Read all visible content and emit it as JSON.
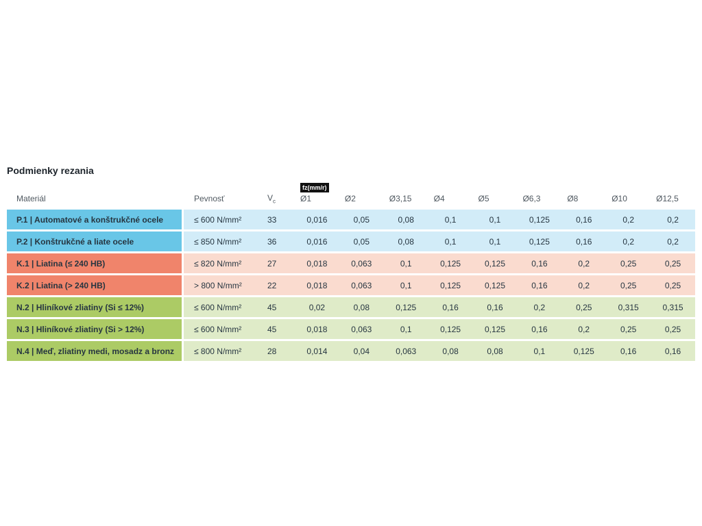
{
  "page": {
    "title": "Podmienky rezania"
  },
  "table": {
    "feed_badge": "fz(mm/r)",
    "headers": {
      "material": "Materiál",
      "strength": "Pevnosť",
      "vc_main": "V",
      "vc_sub": "c",
      "diameters": [
        "Ø1",
        "Ø2",
        "Ø3,15",
        "Ø4",
        "Ø5",
        "Ø6,3",
        "Ø8",
        "Ø10",
        "Ø12,5"
      ]
    },
    "rows": [
      {
        "group": "steel",
        "material": "P.1 | Automatové a konštrukčné ocele",
        "strength": "≤ 600 N/mm²",
        "vc": "33",
        "feeds": [
          "0,016",
          "0,05",
          "0,08",
          "0,1",
          "0,1",
          "0,125",
          "0,16",
          "0,2",
          "0,2"
        ]
      },
      {
        "group": "steel",
        "material": "P.2 | Konštrukčné a liate ocele",
        "strength": "≤ 850 N/mm²",
        "vc": "36",
        "feeds": [
          "0,016",
          "0,05",
          "0,08",
          "0,1",
          "0,1",
          "0,125",
          "0,16",
          "0,2",
          "0,2"
        ]
      },
      {
        "group": "cast-iron",
        "material": "K.1 | Liatina (≤ 240 HB)",
        "strength": "≤ 820 N/mm²",
        "vc": "27",
        "feeds": [
          "0,018",
          "0,063",
          "0,1",
          "0,125",
          "0,125",
          "0,16",
          "0,2",
          "0,25",
          "0,25"
        ]
      },
      {
        "group": "cast-iron",
        "material": "K.2 | Liatina (> 240 HB)",
        "strength": "> 800 N/mm²",
        "vc": "22",
        "feeds": [
          "0,018",
          "0,063",
          "0,1",
          "0,125",
          "0,125",
          "0,16",
          "0,2",
          "0,25",
          "0,25"
        ]
      },
      {
        "group": "non-ferrous",
        "material": "N.2 | Hliníkové zliatiny (Si ≤ 12%)",
        "strength": "≤ 600 N/mm²",
        "vc": "45",
        "feeds": [
          "0,02",
          "0,08",
          "0,125",
          "0,16",
          "0,16",
          "0,2",
          "0,25",
          "0,315",
          "0,315"
        ]
      },
      {
        "group": "non-ferrous",
        "material": "N.3 | Hliníkové zliatiny (Si > 12%)",
        "strength": "≤ 600 N/mm²",
        "vc": "45",
        "feeds": [
          "0,018",
          "0,063",
          "0,1",
          "0,125",
          "0,125",
          "0,16",
          "0,2",
          "0,25",
          "0,25"
        ]
      },
      {
        "group": "non-ferrous",
        "material": "N.4 | Meď, zliatiny medi, mosadz a bronz",
        "strength": "≤ 800 N/mm²",
        "vc": "28",
        "feeds": [
          "0,014",
          "0,04",
          "0,063",
          "0,08",
          "0,08",
          "0,1",
          "0,125",
          "0,16",
          "0,16"
        ]
      }
    ],
    "colors": {
      "steel_label_bg": "#69C6E7",
      "steel_row_bg": "#D2ECF8",
      "cast_iron_label_bg": "#F0846B",
      "cast_iron_row_bg": "#FADBCF",
      "non_ferrous_label_bg": "#ACCB65",
      "non_ferrous_row_bg": "#DFEBC8",
      "badge_bg": "#111111",
      "badge_text": "#FFFFFF",
      "header_text": "#4E575F",
      "body_text": "#263540"
    }
  }
}
